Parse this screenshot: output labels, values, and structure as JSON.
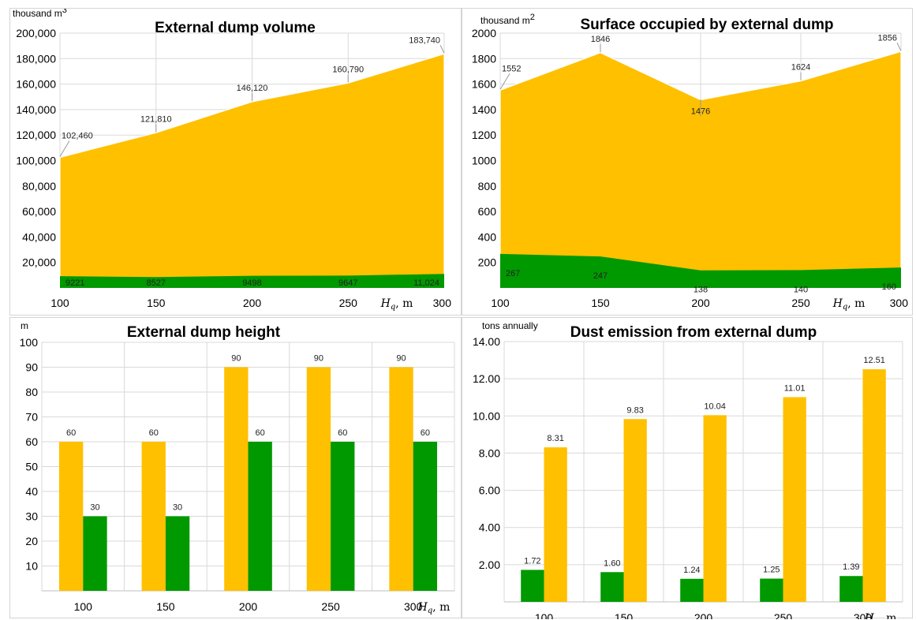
{
  "colors": {
    "orange": "#FFC000",
    "green": "#009900",
    "grid": "#d9d9d9"
  },
  "chart_data": [
    {
      "type": "area",
      "title": "External dump volume",
      "ylabel": "thousand m",
      "ylabel_sup": "3",
      "xlabel": "Hq, m",
      "x": [
        100,
        150,
        200,
        250,
        300
      ],
      "ylim": [
        0,
        200000
      ],
      "yticks": [
        "20,000",
        "40,000",
        "60,000",
        "80,000",
        "100,000",
        "120,000",
        "140,000",
        "160,000",
        "180,000",
        "200,000"
      ],
      "series": [
        {
          "color": "orange",
          "values": [
            102460,
            121810,
            146120,
            160790,
            183740
          ],
          "labels": [
            "102,460",
            "121,810",
            "146,120",
            "160,790",
            "183,740"
          ]
        },
        {
          "color": "green",
          "values": [
            9221,
            8527,
            9498,
            9647,
            11024
          ],
          "labels": [
            "9221",
            "8527",
            "9498",
            "9647",
            "11,024"
          ]
        }
      ]
    },
    {
      "type": "area",
      "title": "Surface occupied by external dump",
      "ylabel": "thousand m",
      "ylabel_sup": "2",
      "xlabel": "Hq, m",
      "x": [
        100,
        150,
        200,
        250,
        300
      ],
      "ylim": [
        0,
        2000
      ],
      "yticks": [
        "200",
        "400",
        "600",
        "800",
        "1000",
        "1200",
        "1400",
        "1600",
        "1800",
        "2000"
      ],
      "series": [
        {
          "color": "orange",
          "values": [
            1552,
            1846,
            1476,
            1624,
            1856
          ],
          "labels": [
            "1552",
            "1846",
            "1476",
            "1624",
            "1856"
          ]
        },
        {
          "color": "green",
          "values": [
            267,
            247,
            138,
            140,
            160
          ],
          "labels": [
            "267",
            "247",
            "138",
            "140",
            "160"
          ]
        }
      ]
    },
    {
      "type": "bar",
      "title": "External dump height",
      "ylabel": "m",
      "xlabel": "Hq, m",
      "categories": [
        "100",
        "150",
        "200",
        "250",
        "300"
      ],
      "ylim": [
        0,
        100
      ],
      "yticks": [
        "10",
        "20",
        "30",
        "40",
        "50",
        "60",
        "70",
        "80",
        "90",
        "100"
      ],
      "series": [
        {
          "color": "orange",
          "values": [
            60,
            60,
            90,
            90,
            90
          ],
          "labels": [
            "60",
            "60",
            "90",
            "90",
            "90"
          ]
        },
        {
          "color": "green",
          "values": [
            30,
            30,
            60,
            60,
            60
          ],
          "labels": [
            "30",
            "30",
            "60",
            "60",
            "60"
          ]
        }
      ]
    },
    {
      "type": "bar",
      "title": "Dust emission from external dump",
      "ylabel": "tons annually",
      "xlabel": "Hq, m",
      "categories": [
        "100",
        "150",
        "200",
        "250",
        "300"
      ],
      "ylim": [
        0,
        14
      ],
      "yticks": [
        "2.00",
        "4.00",
        "6.00",
        "8.00",
        "10.00",
        "12.00",
        "14.00"
      ],
      "series": [
        {
          "color": "green",
          "values": [
            1.72,
            1.6,
            1.24,
            1.25,
            1.39
          ],
          "labels": [
            "1.72",
            "1.60",
            "1.24",
            "1.25",
            "1.39"
          ]
        },
        {
          "color": "orange",
          "values": [
            8.31,
            9.83,
            10.04,
            11.01,
            12.51
          ],
          "labels": [
            "8.31",
            "9.83",
            "10.04",
            "11.01",
            "12.51"
          ]
        }
      ]
    }
  ]
}
